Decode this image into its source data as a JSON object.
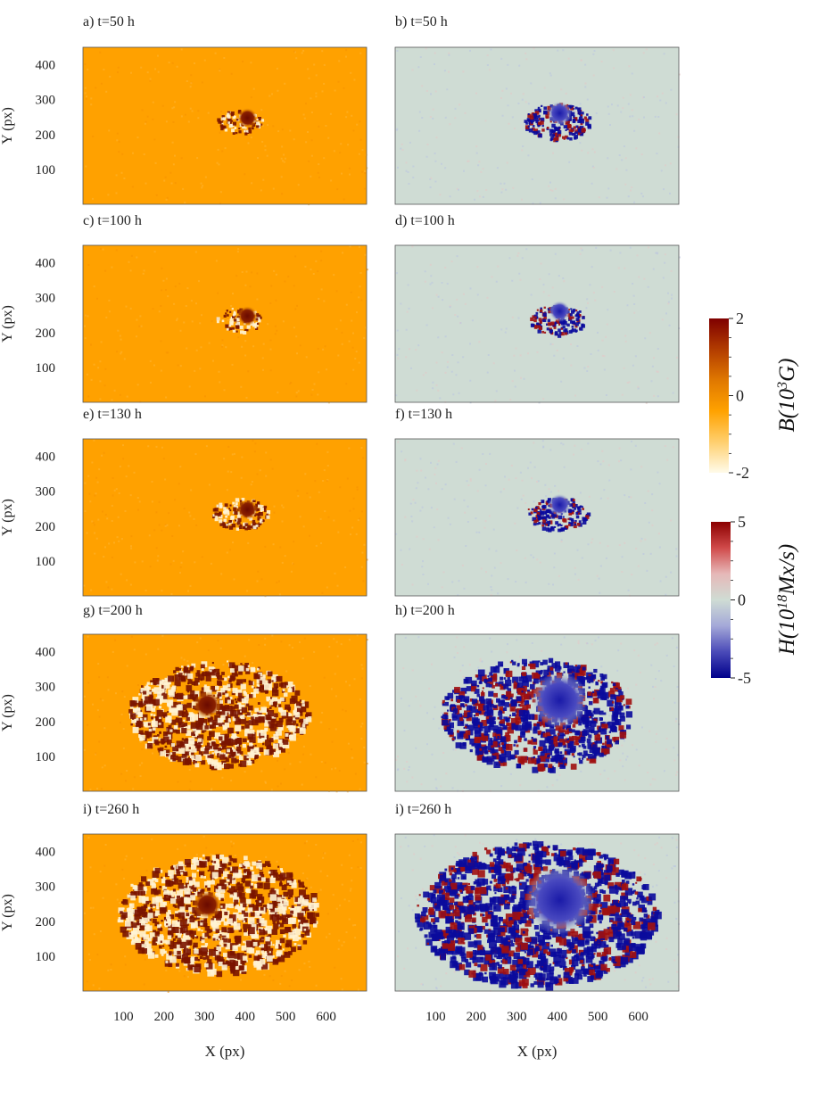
{
  "figure": {
    "x_axis_label": "X (px)",
    "y_axis_label": "Y (px)",
    "x_ticks": [
      "100",
      "200",
      "300",
      "400",
      "500",
      "600"
    ],
    "y_ticks": [
      "100",
      "200",
      "300",
      "400"
    ],
    "panels": [
      {
        "label": "a) t=50 h",
        "field": "B",
        "intensity": 0.05
      },
      {
        "label": "b) t=50 h",
        "field": "H",
        "intensity": 0.15
      },
      {
        "label": "c) t=100 h",
        "field": "B",
        "intensity": 0.05
      },
      {
        "label": "d) t=100 h",
        "field": "H",
        "intensity": 0.1
      },
      {
        "label": "e) t=130 h",
        "field": "B",
        "intensity": 0.1
      },
      {
        "label": "f) t=130 h",
        "field": "H",
        "intensity": 0.12
      },
      {
        "label": "g) t=200 h",
        "field": "B",
        "intensity": 0.7
      },
      {
        "label": "h) t=200 h",
        "field": "H",
        "intensity": 0.75
      },
      {
        "label": "i) t=260 h",
        "field": "B",
        "intensity": 0.8
      },
      {
        "label": "i) t=260 h",
        "field": "H",
        "intensity": 1.0
      }
    ],
    "colorbar_B": {
      "label_prefix": "B(10",
      "label_exponent": "3",
      "label_suffix": "G)",
      "ticks": [
        "2",
        "0",
        "-2"
      ],
      "colors": [
        "#7f0000",
        "#b23c00",
        "#e07800",
        "#ffa200",
        "#ffcf6e",
        "#fffbea"
      ]
    },
    "colorbar_H": {
      "label_prefix": "H(10",
      "label_exponent": "18",
      "label_suffix": "Mx/s)",
      "ticks": [
        "5",
        "0",
        "-5"
      ],
      "colors": [
        "#8b0000",
        "#d04a4a",
        "#e6b8b8",
        "#cfdcd4",
        "#a4a8d8",
        "#4a4ab8",
        "#00008b"
      ]
    },
    "colors": {
      "B_background": "#ffa100",
      "B_dark": "#7a1400",
      "B_light": "#fff3d4",
      "H_background": "#cfdcd4",
      "H_neg": "#0a0a9c",
      "H_pos": "#a01010"
    }
  }
}
